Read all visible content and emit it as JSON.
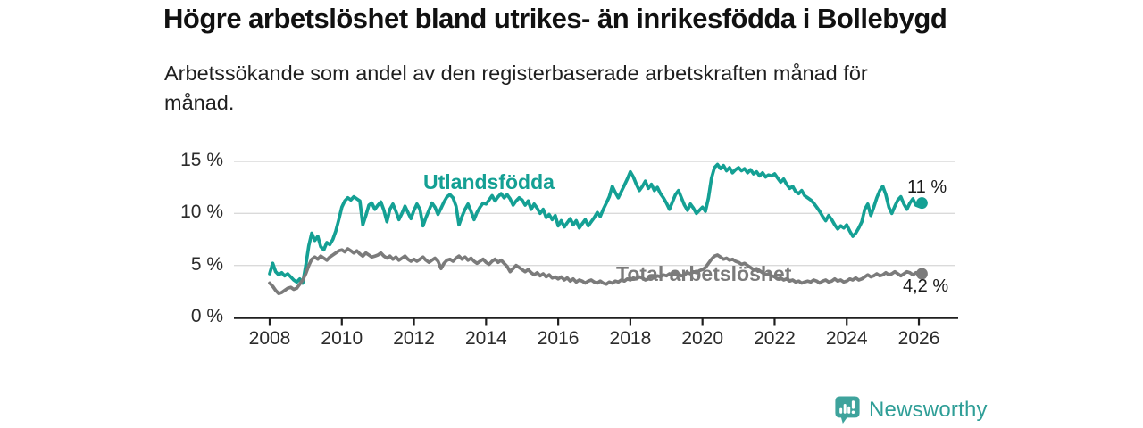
{
  "header": {
    "title": "Högre arbetslöshet bland utrikes- än inrikesfödda i Bollebygd",
    "subtitle": "Arbetssökande som andel av den registerbaserade arbetskraften månad för månad."
  },
  "chart_data": {
    "type": "line",
    "title": "Högre arbetslöshet bland utrikes- än inrikesfödda i Bollebygd",
    "subtitle": "Arbetssökande som andel av den registerbaserade arbetskraften månad för månad.",
    "unit": "%",
    "x_interval": "monthly",
    "x_start": "2008-01",
    "x_end": "2026-02",
    "xlim": [
      2007.5,
      2027.1
    ],
    "ylim": [
      0,
      15.5
    ],
    "grid": "horizontal",
    "legend_position": "inline-labels",
    "x_tick_labels": [
      "2008",
      "2010",
      "2012",
      "2014",
      "2016",
      "2018",
      "2020",
      "2022",
      "2024",
      "2026"
    ],
    "y_ticks": [
      {
        "value": 0,
        "label": "0 %"
      },
      {
        "value": 5,
        "label": "5 %"
      },
      {
        "value": 10,
        "label": "10 %"
      },
      {
        "value": 15,
        "label": "15 %"
      }
    ],
    "series": [
      {
        "name": "Utlandsfödda",
        "color": "#14a094",
        "end_label": "11 %",
        "end_value": 11,
        "values": [
          4.2,
          5.2,
          4.4,
          4.1,
          4.3,
          4.0,
          4.2,
          3.9,
          3.6,
          3.4,
          3.7,
          3.3,
          5.0,
          6.9,
          8.1,
          7.4,
          7.8,
          6.8,
          6.5,
          7.2,
          7.0,
          7.5,
          8.3,
          9.4,
          10.6,
          11.2,
          11.5,
          11.3,
          11.6,
          11.4,
          11.2,
          8.9,
          9.8,
          10.8,
          11.0,
          10.4,
          10.8,
          11.1,
          10.3,
          9.2,
          10.4,
          10.9,
          10.2,
          9.4,
          10.0,
          10.7,
          10.1,
          9.5,
          10.3,
          10.9,
          10.4,
          8.8,
          9.6,
          10.3,
          11.0,
          10.6,
          9.9,
          10.5,
          11.1,
          11.6,
          11.8,
          11.5,
          10.7,
          8.9,
          9.7,
          10.4,
          10.9,
          10.2,
          9.4,
          10.1,
          10.6,
          11.0,
          10.9,
          11.3,
          11.7,
          11.2,
          11.6,
          11.9,
          11.5,
          11.8,
          11.4,
          10.8,
          11.2,
          11.5,
          11.3,
          10.8,
          11.2,
          10.4,
          10.9,
          10.5,
          10.0,
          10.4,
          9.6,
          9.9,
          9.4,
          9.8,
          8.8,
          9.3,
          8.7,
          9.1,
          9.5,
          8.9,
          9.3,
          8.6,
          9.0,
          9.4,
          8.8,
          9.2,
          9.6,
          10.1,
          9.7,
          10.4,
          11.0,
          11.6,
          12.6,
          12.0,
          11.5,
          12.1,
          12.7,
          13.3,
          14.0,
          13.5,
          12.8,
          12.2,
          12.6,
          13.1,
          12.4,
          12.8,
          12.2,
          12.5,
          11.9,
          11.5,
          11.0,
          10.4,
          11.1,
          11.8,
          12.2,
          11.5,
          10.8,
          10.3,
          10.9,
          10.5,
          10.0,
          10.3,
          10.6,
          10.2,
          11.5,
          13.4,
          14.4,
          14.7,
          14.3,
          14.6,
          14.1,
          14.4,
          13.9,
          14.2,
          14.4,
          14.1,
          14.3,
          13.9,
          14.2,
          13.8,
          14.0,
          13.6,
          13.9,
          13.5,
          13.7,
          13.6,
          13.8,
          13.4,
          13.0,
          13.3,
          12.8,
          12.4,
          12.6,
          12.1,
          11.9,
          12.2,
          11.7,
          11.5,
          11.3,
          11.0,
          10.6,
          10.2,
          9.7,
          9.3,
          9.8,
          9.4,
          8.9,
          8.5,
          8.8,
          8.6,
          8.9,
          8.3,
          7.8,
          8.1,
          8.6,
          9.2,
          10.4,
          10.9,
          9.8,
          10.6,
          11.5,
          12.2,
          12.6,
          11.8,
          10.6,
          10.0,
          10.7,
          11.3,
          11.6,
          10.9,
          10.4,
          11.0,
          11.4,
          10.8,
          10.7,
          11.0
        ]
      },
      {
        "name": "Total arbetslöshet",
        "color": "#7b7b7b",
        "end_label": "4,2 %",
        "end_value": 4.2,
        "values": [
          3.3,
          3.0,
          2.6,
          2.3,
          2.4,
          2.6,
          2.8,
          2.9,
          2.7,
          2.8,
          3.2,
          3.6,
          4.2,
          5.0,
          5.6,
          5.8,
          5.6,
          5.9,
          5.7,
          5.5,
          5.8,
          6.0,
          6.2,
          6.4,
          6.5,
          6.3,
          6.6,
          6.4,
          6.2,
          6.4,
          6.1,
          5.9,
          6.2,
          6.0,
          5.8,
          5.9,
          6.0,
          6.2,
          5.9,
          5.7,
          5.9,
          5.6,
          5.8,
          5.5,
          5.7,
          5.9,
          5.6,
          5.4,
          5.6,
          5.4,
          5.6,
          5.8,
          5.5,
          5.3,
          5.5,
          5.7,
          5.4,
          4.7,
          5.2,
          5.5,
          5.6,
          5.4,
          5.7,
          5.9,
          5.6,
          5.8,
          5.5,
          5.7,
          5.4,
          5.2,
          5.4,
          5.6,
          5.3,
          5.1,
          5.4,
          5.6,
          5.3,
          5.5,
          5.2,
          4.9,
          4.4,
          4.7,
          5.0,
          4.8,
          4.6,
          4.4,
          4.6,
          4.3,
          4.1,
          4.3,
          4.0,
          4.2,
          3.9,
          4.1,
          3.8,
          3.9,
          3.7,
          3.9,
          3.6,
          3.8,
          3.5,
          3.7,
          3.4,
          3.6,
          3.5,
          3.3,
          3.5,
          3.6,
          3.4,
          3.3,
          3.5,
          3.3,
          3.2,
          3.4,
          3.3,
          3.5,
          3.4,
          3.6,
          3.5,
          3.7,
          3.6,
          3.8,
          3.7,
          3.9,
          3.8,
          3.6,
          3.7,
          3.9,
          3.8,
          4.0,
          3.9,
          4.1,
          4.0,
          4.2,
          4.1,
          4.3,
          4.2,
          4.0,
          4.1,
          4.3,
          4.2,
          4.4,
          4.3,
          4.5,
          4.6,
          4.8,
          5.2,
          5.6,
          5.9,
          6.0,
          5.8,
          5.6,
          5.7,
          5.5,
          5.6,
          5.4,
          5.3,
          5.1,
          5.2,
          5.0,
          4.8,
          4.6,
          4.7,
          4.5,
          4.3,
          4.1,
          4.2,
          4.0,
          3.9,
          3.7,
          3.8,
          3.6,
          3.7,
          3.5,
          3.6,
          3.4,
          3.5,
          3.3,
          3.4,
          3.5,
          3.4,
          3.6,
          3.5,
          3.3,
          3.5,
          3.6,
          3.4,
          3.5,
          3.7,
          3.5,
          3.6,
          3.4,
          3.5,
          3.7,
          3.6,
          3.8,
          3.6,
          3.7,
          3.9,
          4.1,
          3.9,
          4.0,
          4.2,
          4.0,
          4.1,
          4.3,
          4.1,
          4.2,
          4.4,
          4.2,
          4.0,
          4.2,
          4.4,
          4.3,
          4.1,
          4.3,
          4.1,
          4.2
        ]
      }
    ]
  },
  "footer": {
    "brand": "Newsworthy",
    "brand_color": "#2f9e97",
    "icon": "newsworthy-bubble-barchart-icon",
    "icon_color": "#3ea39c"
  }
}
